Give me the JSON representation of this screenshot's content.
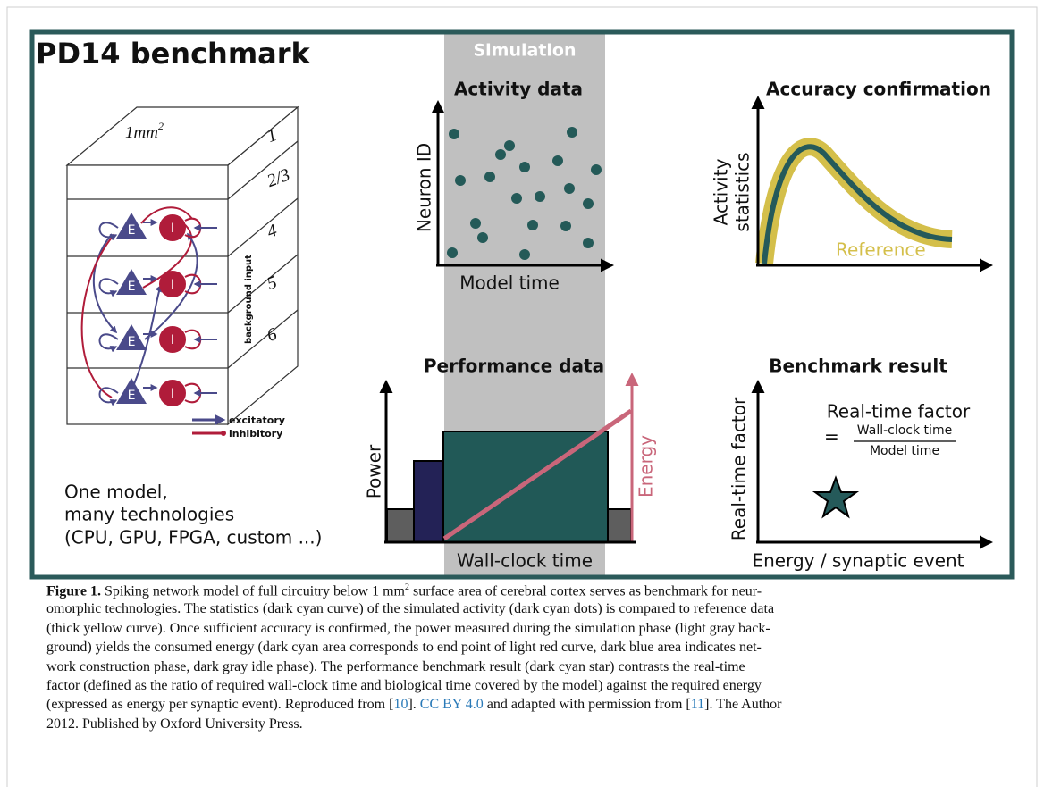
{
  "figure": {
    "title": "PD14 benchmark",
    "phase_label": "Simulation",
    "model": {
      "area": "1mm",
      "area_exponent": "2",
      "layers": [
        "1",
        "2/3",
        "4",
        "5",
        "6"
      ],
      "input_label": "background input",
      "excitatory_node": "E",
      "inhibitory_node": "I",
      "legend": [
        "excitatory",
        "inhibitory"
      ],
      "notes": [
        "One model,",
        "many technologies",
        "(CPU, GPU, FPGA, custom ...)"
      ]
    },
    "activity": {
      "title": "Activity data",
      "y_label": "Neuron ID",
      "x_label": "Model time"
    },
    "accuracy": {
      "title": "Accuracy confirmation",
      "y_label": [
        "Activity",
        "statistics"
      ],
      "curve_label": "Reference"
    },
    "performance": {
      "title": "Performance data",
      "y_label": "Power",
      "y2_label": "Energy",
      "x_label": "Wall-clock time"
    },
    "result": {
      "title": "Benchmark result",
      "y_label": "Real-time factor",
      "x_label": "Energy / synaptic event",
      "formula": {
        "name": "Real-time factor",
        "equals": "=",
        "numerator": "Wall-clock time",
        "denominator": "Model time"
      }
    }
  },
  "caption": {
    "label": "Figure 1.",
    "lines": [
      [
        "Spiking network model of full circuitry below 1 mm",
        "2",
        " surface area of cerebral cortex serves as benchmark for neur-"
      ],
      [
        "omorphic technologies. The statistics (dark cyan curve) of the simulated activity (dark cyan dots) is compared to reference data"
      ],
      [
        "(thick yellow curve). Once sufficient accuracy is confirmed, the power measured during the simulation phase (light gray back-"
      ],
      [
        "ground) yields the consumed energy (dark cyan area corresponds to end point of light red curve, dark blue area indicates net-"
      ],
      [
        "work construction phase, dark gray idle phase). The performance benchmark result (dark cyan star) contrasts the real-time"
      ],
      [
        "factor (defined as the ratio of required wall-clock time and biological time covered by the model) against the required energy"
      ],
      [
        "(expressed as energy per synaptic event). Reproduced from [",
        "10",
        "]. ",
        "CC BY 4.0",
        " and adapted with permission from [",
        "11",
        "]. The Author"
      ],
      [
        "2012. Published by Oxford University Press."
      ]
    ]
  }
}
